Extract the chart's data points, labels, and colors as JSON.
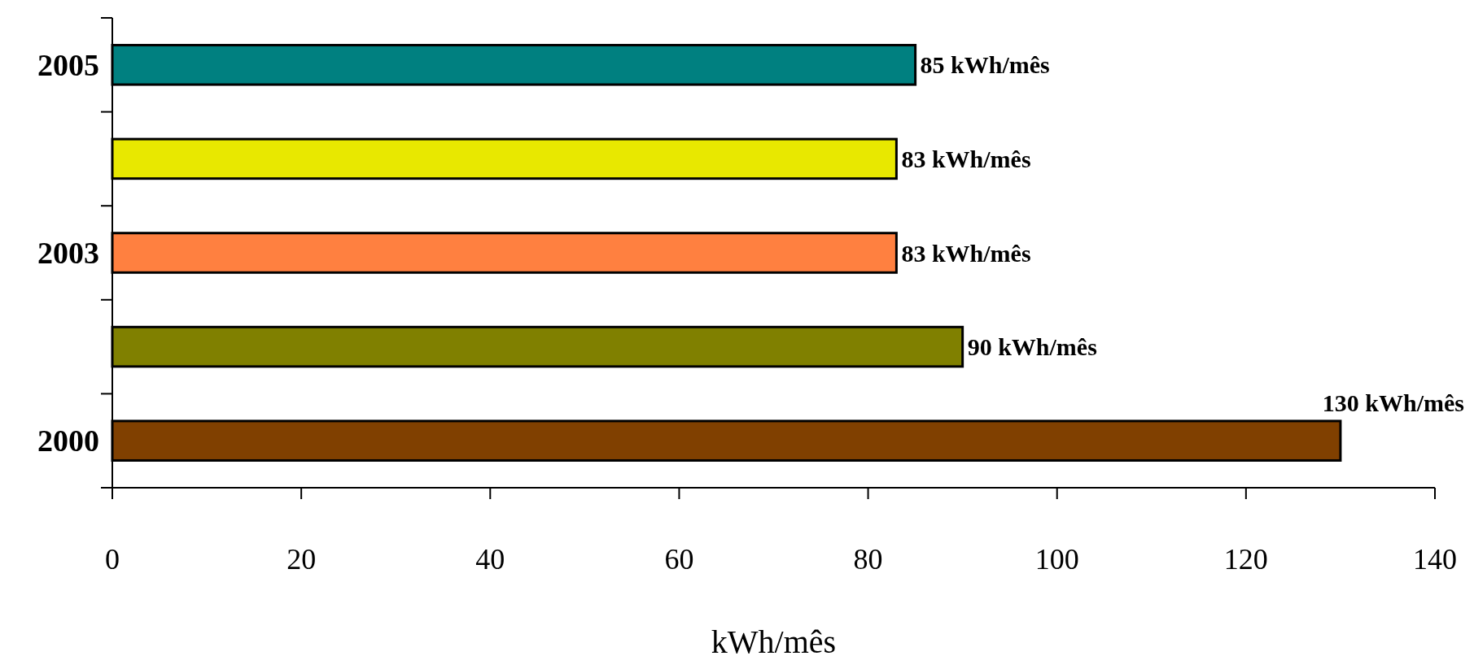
{
  "chart_data": {
    "type": "bar",
    "orientation": "horizontal",
    "xlabel": "kWh/mês",
    "categories": [
      "2005",
      null,
      "2003",
      null,
      "2000"
    ],
    "values": [
      85,
      83,
      83,
      90,
      130
    ],
    "colors": [
      "#008080",
      "#e8e800",
      "#ff8040",
      "#808000",
      "#804000"
    ],
    "value_labels": [
      "85 kWh/mês",
      "83 kWh/mês",
      "83 kWh/mês",
      "90 kWh/mês",
      "130 kWh/mês"
    ],
    "xlim": [
      0,
      140
    ],
    "xticks": [
      0,
      20,
      40,
      60,
      80,
      100,
      120,
      140
    ]
  }
}
